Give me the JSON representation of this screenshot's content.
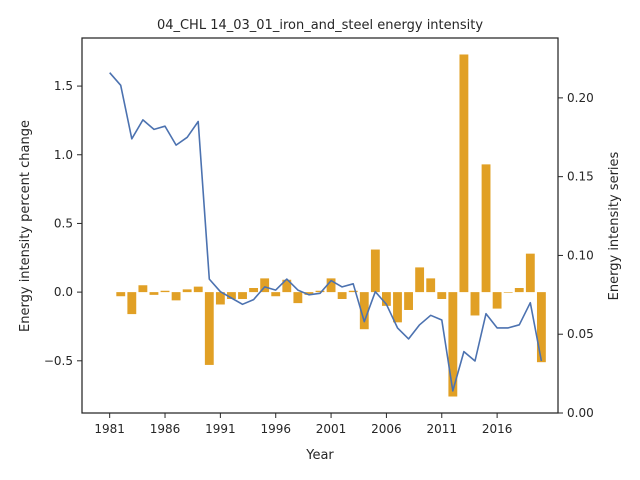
{
  "chart_data": {
    "type": "bar+line",
    "title": "04_CHL 14_03_01_iron_and_steel energy intensity",
    "xlabel": "Year",
    "ylabel_left": "Energy intensity percent change",
    "ylabel_right": "Energy intensity series",
    "x_ticks": [
      1981,
      1986,
      1991,
      1996,
      2001,
      2006,
      2011,
      2016
    ],
    "y_left_ticks": [
      -0.5,
      0.0,
      0.5,
      1.0,
      1.5
    ],
    "y_right_ticks": [
      0.0,
      0.05,
      0.1,
      0.15,
      0.2
    ],
    "y_left_lim": [
      -0.88,
      1.85
    ],
    "y_right_lim": [
      0.0,
      0.238
    ],
    "x_lim": [
      1978.5,
      2021.5
    ],
    "grid": false,
    "years": [
      1981,
      1982,
      1983,
      1984,
      1985,
      1986,
      1987,
      1988,
      1989,
      1990,
      1991,
      1992,
      1993,
      1994,
      1995,
      1996,
      1997,
      1998,
      1999,
      2000,
      2001,
      2002,
      2003,
      2004,
      2005,
      2006,
      2007,
      2008,
      2009,
      2010,
      2011,
      2012,
      2013,
      2014,
      2015,
      2016,
      2017,
      2018,
      2019,
      2020
    ],
    "bar_series": {
      "color": "#e1a025",
      "values": [
        null,
        -0.03,
        -0.16,
        0.05,
        -0.02,
        0.01,
        -0.06,
        0.02,
        0.04,
        -0.53,
        -0.09,
        -0.05,
        -0.05,
        0.03,
        0.1,
        -0.03,
        0.09,
        -0.08,
        -0.02,
        0.01,
        0.1,
        -0.05,
        0.01,
        -0.27,
        0.31,
        -0.1,
        -0.22,
        -0.13,
        0.18,
        0.1,
        -0.05,
        -0.76,
        1.73,
        -0.17,
        0.93,
        -0.12,
        0.0,
        0.03,
        0.28,
        -0.51
      ]
    },
    "line_series": {
      "color": "#4c72b0",
      "values": [
        0.216,
        0.208,
        0.174,
        0.186,
        0.18,
        0.182,
        0.17,
        0.175,
        0.185,
        0.085,
        0.077,
        0.073,
        0.069,
        0.072,
        0.08,
        0.078,
        0.085,
        0.078,
        0.075,
        0.076,
        0.084,
        0.08,
        0.082,
        0.058,
        0.077,
        0.069,
        0.054,
        0.047,
        0.056,
        0.062,
        0.059,
        0.014,
        0.039,
        0.033,
        0.063,
        0.054,
        0.054,
        0.056,
        0.07,
        0.033
      ]
    }
  }
}
